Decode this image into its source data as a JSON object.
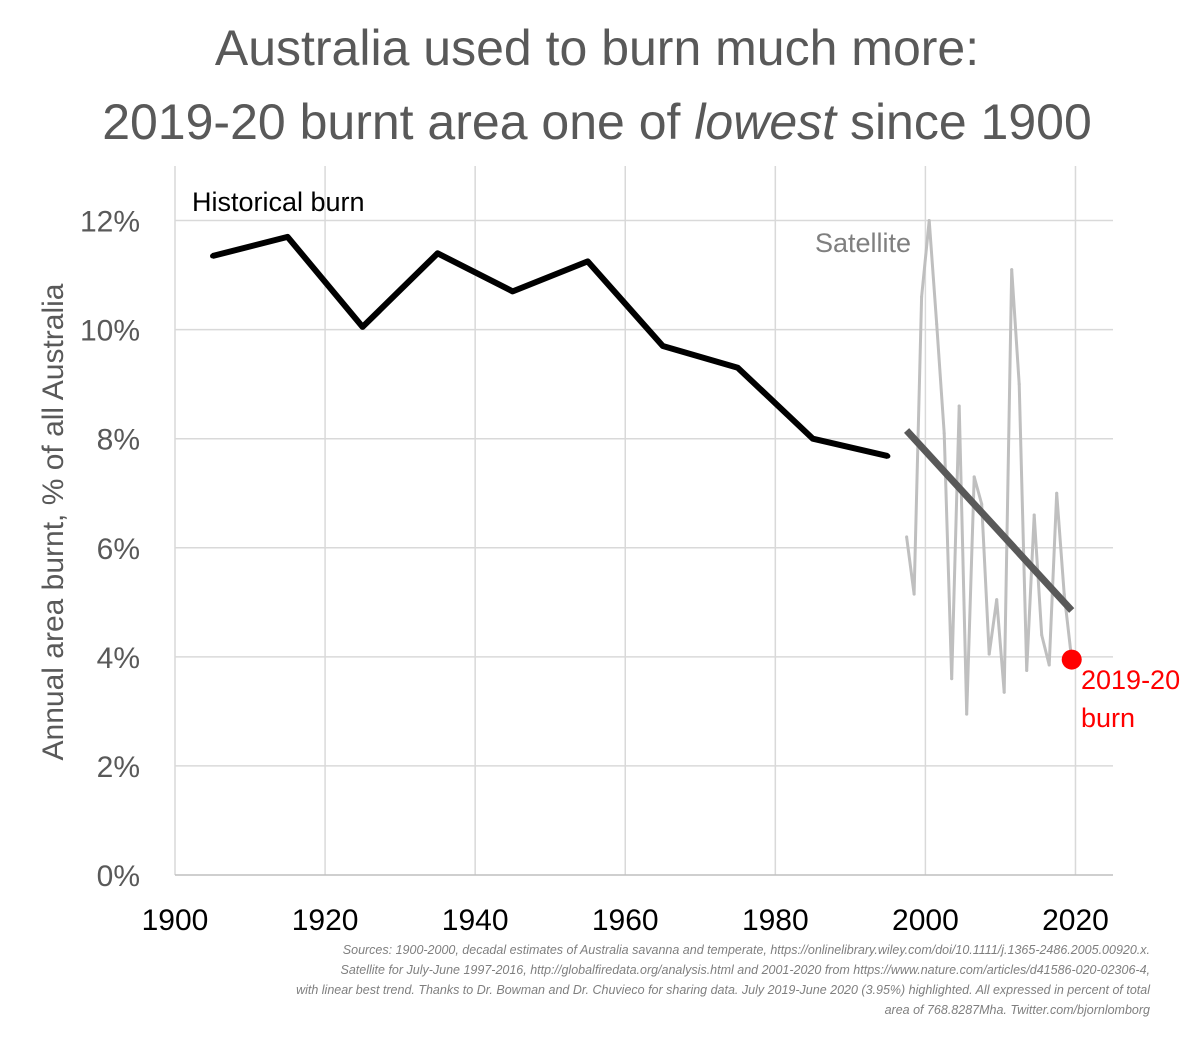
{
  "title": {
    "line1": "Australia used to burn much more:",
    "line2_prefix": "2019-20 burnt area one of ",
    "line2_emph": "lowest",
    "line2_suffix": " since 1900"
  },
  "sources": [
    "Sources: 1900-2000, decadal estimates of Australia savanna and temperate, https://onlinelibrary.wiley.com/doi/10.1111/j.1365-2486.2005.00920.x.",
    "Satellite for July-June 1997-2016, http://globalfiredata.org/analysis.html and 2001-2020 from https://www.nature.com/articles/d41586-020-02306-4,",
    "with linear best trend. Thanks to Dr. Bowman and Dr. Chuvieco for sharing data. July 2019-June 2020 (3.95%) highlighted. All expressed in percent of total",
    "area of 768.8287Mha. Twitter.com/bjornlomborg"
  ],
  "colors": {
    "historical": "#000000",
    "satellite": "#bfbfbf",
    "trend": "#595959",
    "highlight": "#ff0000",
    "axis_text": "#595959",
    "grid": "#d9d9d9"
  },
  "chart_data": {
    "type": "line",
    "ylabel": "Annual area burnt, % of all Australia",
    "xlabel": "",
    "xlim": [
      1900,
      2025
    ],
    "ylim": [
      0,
      13
    ],
    "xticks": [
      1900,
      1920,
      1940,
      1960,
      1980,
      2000,
      2020
    ],
    "yticks": [
      0,
      2,
      4,
      6,
      8,
      10,
      12
    ],
    "ytick_labels": [
      "0%",
      "2%",
      "4%",
      "6%",
      "8%",
      "10%",
      "12%"
    ],
    "grid": true,
    "series": [
      {
        "name": "Historical burn",
        "x": [
          1905,
          1915,
          1925,
          1935,
          1945,
          1955,
          1965,
          1975,
          1985,
          1995
        ],
        "y": [
          11.35,
          11.7,
          10.05,
          11.4,
          10.7,
          11.25,
          9.7,
          9.3,
          8.0,
          7.68
        ]
      },
      {
        "name": "Satellite",
        "x": [
          1997.5,
          1998.5,
          1999.5,
          2000.5,
          2001.5,
          2002.5,
          2003.5,
          2004.5,
          2005.5,
          2006.5,
          2007.5,
          2008.5,
          2009.5,
          2010.5,
          2011.5,
          2012.5,
          2013.5,
          2014.5,
          2015.5,
          2016.5,
          2017.5,
          2018.5,
          2019.5
        ],
        "y": [
          6.2,
          5.15,
          10.6,
          12.0,
          10.1,
          8.1,
          3.6,
          8.6,
          2.95,
          7.3,
          6.8,
          4.05,
          5.05,
          3.35,
          11.1,
          9.0,
          3.75,
          6.6,
          4.4,
          3.85,
          7.0,
          5.15,
          3.95
        ]
      },
      {
        "name": "Linear trend",
        "x": [
          1997.5,
          2019.5
        ],
        "y": [
          8.15,
          4.85
        ]
      }
    ],
    "highlight": {
      "x": 2019.5,
      "y": 3.95,
      "label_line1": "2019-20",
      "label_line2": "burn"
    }
  }
}
